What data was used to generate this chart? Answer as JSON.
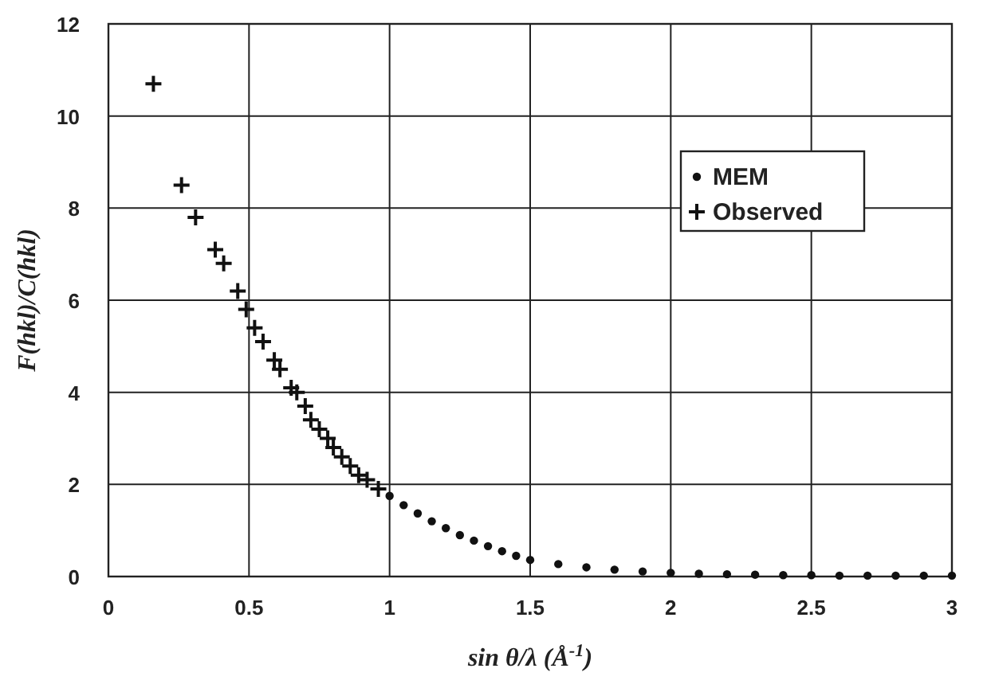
{
  "chart_data": {
    "type": "scatter",
    "xlabel": "sin θ/λ (Å$^{-1}$)",
    "ylabel": "F(hkl)/C(hkl)",
    "xlim": [
      0,
      3
    ],
    "xticks": [
      0,
      0.5,
      1,
      1.5,
      2,
      2.5,
      3
    ],
    "ylim": [
      0,
      12
    ],
    "yticks": [
      0,
      2,
      4,
      6,
      8,
      10,
      12
    ],
    "grid": true,
    "legend": "top right",
    "series": [
      {
        "name": "MEM",
        "color": "#111111",
        "marker": "circle",
        "x": [
          1.0,
          1.05,
          1.1,
          1.15,
          1.2,
          1.25,
          1.3,
          1.35,
          1.4,
          1.45,
          1.5,
          1.6,
          1.7,
          1.8,
          1.9,
          2.0,
          2.1,
          2.2,
          2.3,
          2.4,
          2.5,
          2.6,
          2.7,
          2.8,
          2.9,
          3.0
        ],
        "values": [
          1.75,
          1.55,
          1.37,
          1.2,
          1.05,
          0.9,
          0.78,
          0.66,
          0.55,
          0.45,
          0.36,
          0.27,
          0.2,
          0.15,
          0.11,
          0.08,
          0.06,
          0.05,
          0.04,
          0.03,
          0.03,
          0.02,
          0.02,
          0.02,
          0.02,
          0.02
        ]
      },
      {
        "name": "Observed",
        "color": "#111111",
        "marker": "cross",
        "x": [
          0.16,
          0.26,
          0.31,
          0.38,
          0.41,
          0.46,
          0.49,
          0.52,
          0.55,
          0.59,
          0.61,
          0.65,
          0.67,
          0.7,
          0.72,
          0.75,
          0.78,
          0.8,
          0.83,
          0.86,
          0.89,
          0.92,
          0.96
        ],
        "values": [
          10.7,
          8.5,
          7.8,
          7.1,
          6.8,
          6.2,
          5.8,
          5.4,
          5.1,
          4.7,
          4.5,
          4.1,
          4.0,
          3.7,
          3.4,
          3.2,
          3.0,
          2.8,
          2.6,
          2.4,
          2.2,
          2.1,
          1.9
        ]
      }
    ]
  }
}
